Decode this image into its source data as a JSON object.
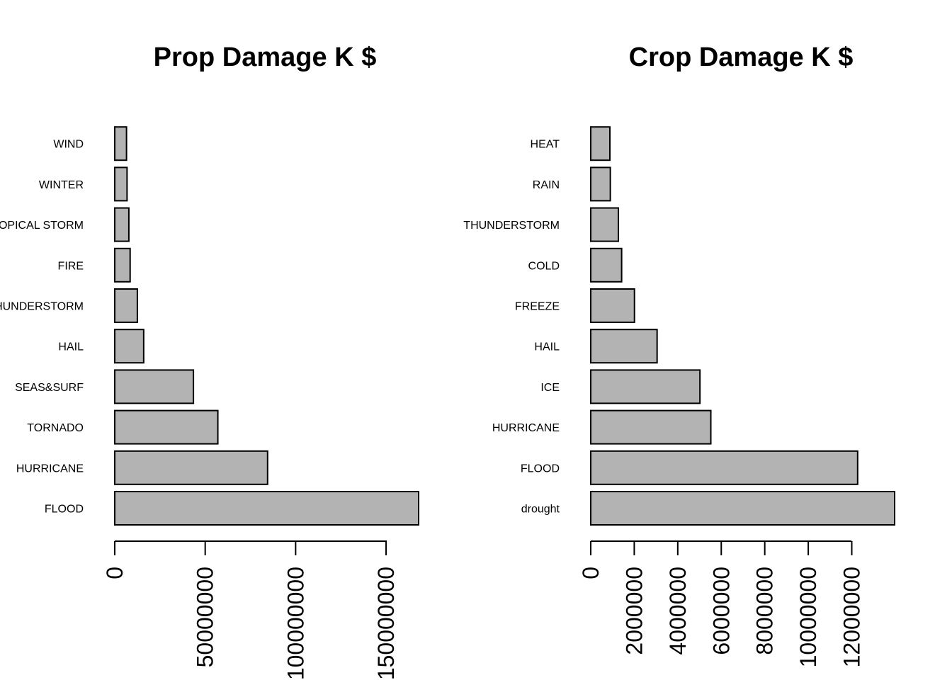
{
  "chart_data": [
    {
      "type": "bar",
      "orientation": "horizontal",
      "title": "Prop Damage K $",
      "xlabel": "",
      "ylabel": "",
      "categories": [
        "FLOOD",
        "HURRICANE",
        "TORNADO",
        "SEAS&SURF",
        "HAIL",
        "THUNDERSTORM",
        "FIRE",
        "TROPICAL STORM",
        "WINTER",
        "WIND"
      ],
      "values": [
        168000000,
        84500000,
        57000000,
        43500000,
        16000000,
        12500000,
        8500000,
        7800000,
        6800000,
        6500000
      ],
      "xlim": [
        0,
        168000000
      ],
      "ticks": [
        0,
        50000000,
        100000000,
        150000000
      ],
      "tick_labels": [
        "0",
        "50000000",
        "100000000",
        "150000000"
      ],
      "bar_color": "#b3b3b3",
      "grid": false
    },
    {
      "type": "bar",
      "orientation": "horizontal",
      "title": "Crop Damage K $",
      "xlabel": "",
      "ylabel": "",
      "categories": [
        "drought",
        "FLOOD",
        "HURRICANE",
        "ICE",
        "HAIL",
        "FREEZE",
        "COLD",
        "THUNDERSTORM",
        "RAIN",
        "HEAT"
      ],
      "values": [
        13970000,
        12270000,
        5520000,
        5020000,
        3050000,
        2010000,
        1420000,
        1270000,
        900000,
        880000
      ],
      "xlim": [
        0,
        13970000
      ],
      "ticks": [
        0,
        2000000,
        4000000,
        6000000,
        8000000,
        10000000,
        12000000
      ],
      "tick_labels": [
        "0",
        "2000000",
        "4000000",
        "6000000",
        "8000000",
        "10000000",
        "12000000"
      ],
      "bar_color": "#b3b3b3",
      "grid": false
    }
  ]
}
